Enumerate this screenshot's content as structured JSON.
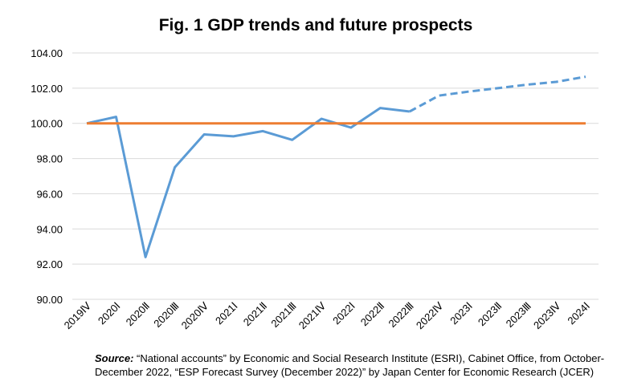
{
  "chart_data": {
    "type": "line",
    "title": "Fig. 1 GDP trends and future prospects",
    "xlabel": "",
    "ylabel": "",
    "categories": [
      "2019Ⅳ",
      "2020Ⅰ",
      "2020Ⅱ",
      "2020Ⅲ",
      "2020Ⅳ",
      "2021Ⅰ",
      "2021Ⅱ",
      "2021Ⅲ",
      "2021Ⅳ",
      "2022Ⅰ",
      "2022Ⅱ",
      "2022Ⅲ",
      "2022Ⅳ",
      "2023Ⅰ",
      "2023Ⅱ",
      "2023Ⅲ",
      "2023Ⅳ",
      "2024Ⅰ"
    ],
    "ylim": [
      90,
      104
    ],
    "yticks": [
      "90.00",
      "92.00",
      "94.00",
      "96.00",
      "98.00",
      "100.00",
      "102.00",
      "104.00"
    ],
    "grid": true,
    "series": [
      {
        "values": [
          100.0,
          100.37,
          92.4,
          97.5,
          99.37,
          99.26,
          99.56,
          99.06,
          100.26,
          99.76,
          100.87,
          100.67,
          null,
          null,
          null,
          null,
          null,
          null
        ],
        "color": "#5B9BD5",
        "style": "solid"
      },
      {
        "values": [
          null,
          null,
          null,
          null,
          null,
          null,
          null,
          null,
          null,
          null,
          null,
          100.67,
          101.58,
          101.8,
          102.0,
          102.2,
          102.36,
          102.65
        ],
        "color": "#5B9BD5",
        "style": "dashed"
      },
      {
        "values": [
          100,
          100,
          100,
          100,
          100,
          100,
          100,
          100,
          100,
          100,
          100,
          100,
          100,
          100,
          100,
          100,
          100,
          100
        ],
        "color": "#ED7D31",
        "style": "solid"
      }
    ]
  },
  "source": {
    "label": "Source:",
    "text": " “National accounts” by Economic and Social Research Institute  (ESRI), Cabinet Office, from October-December 2022, “ESP Forecast Survey (December 2022)” by Japan Center for Economic Research (JCER)"
  }
}
